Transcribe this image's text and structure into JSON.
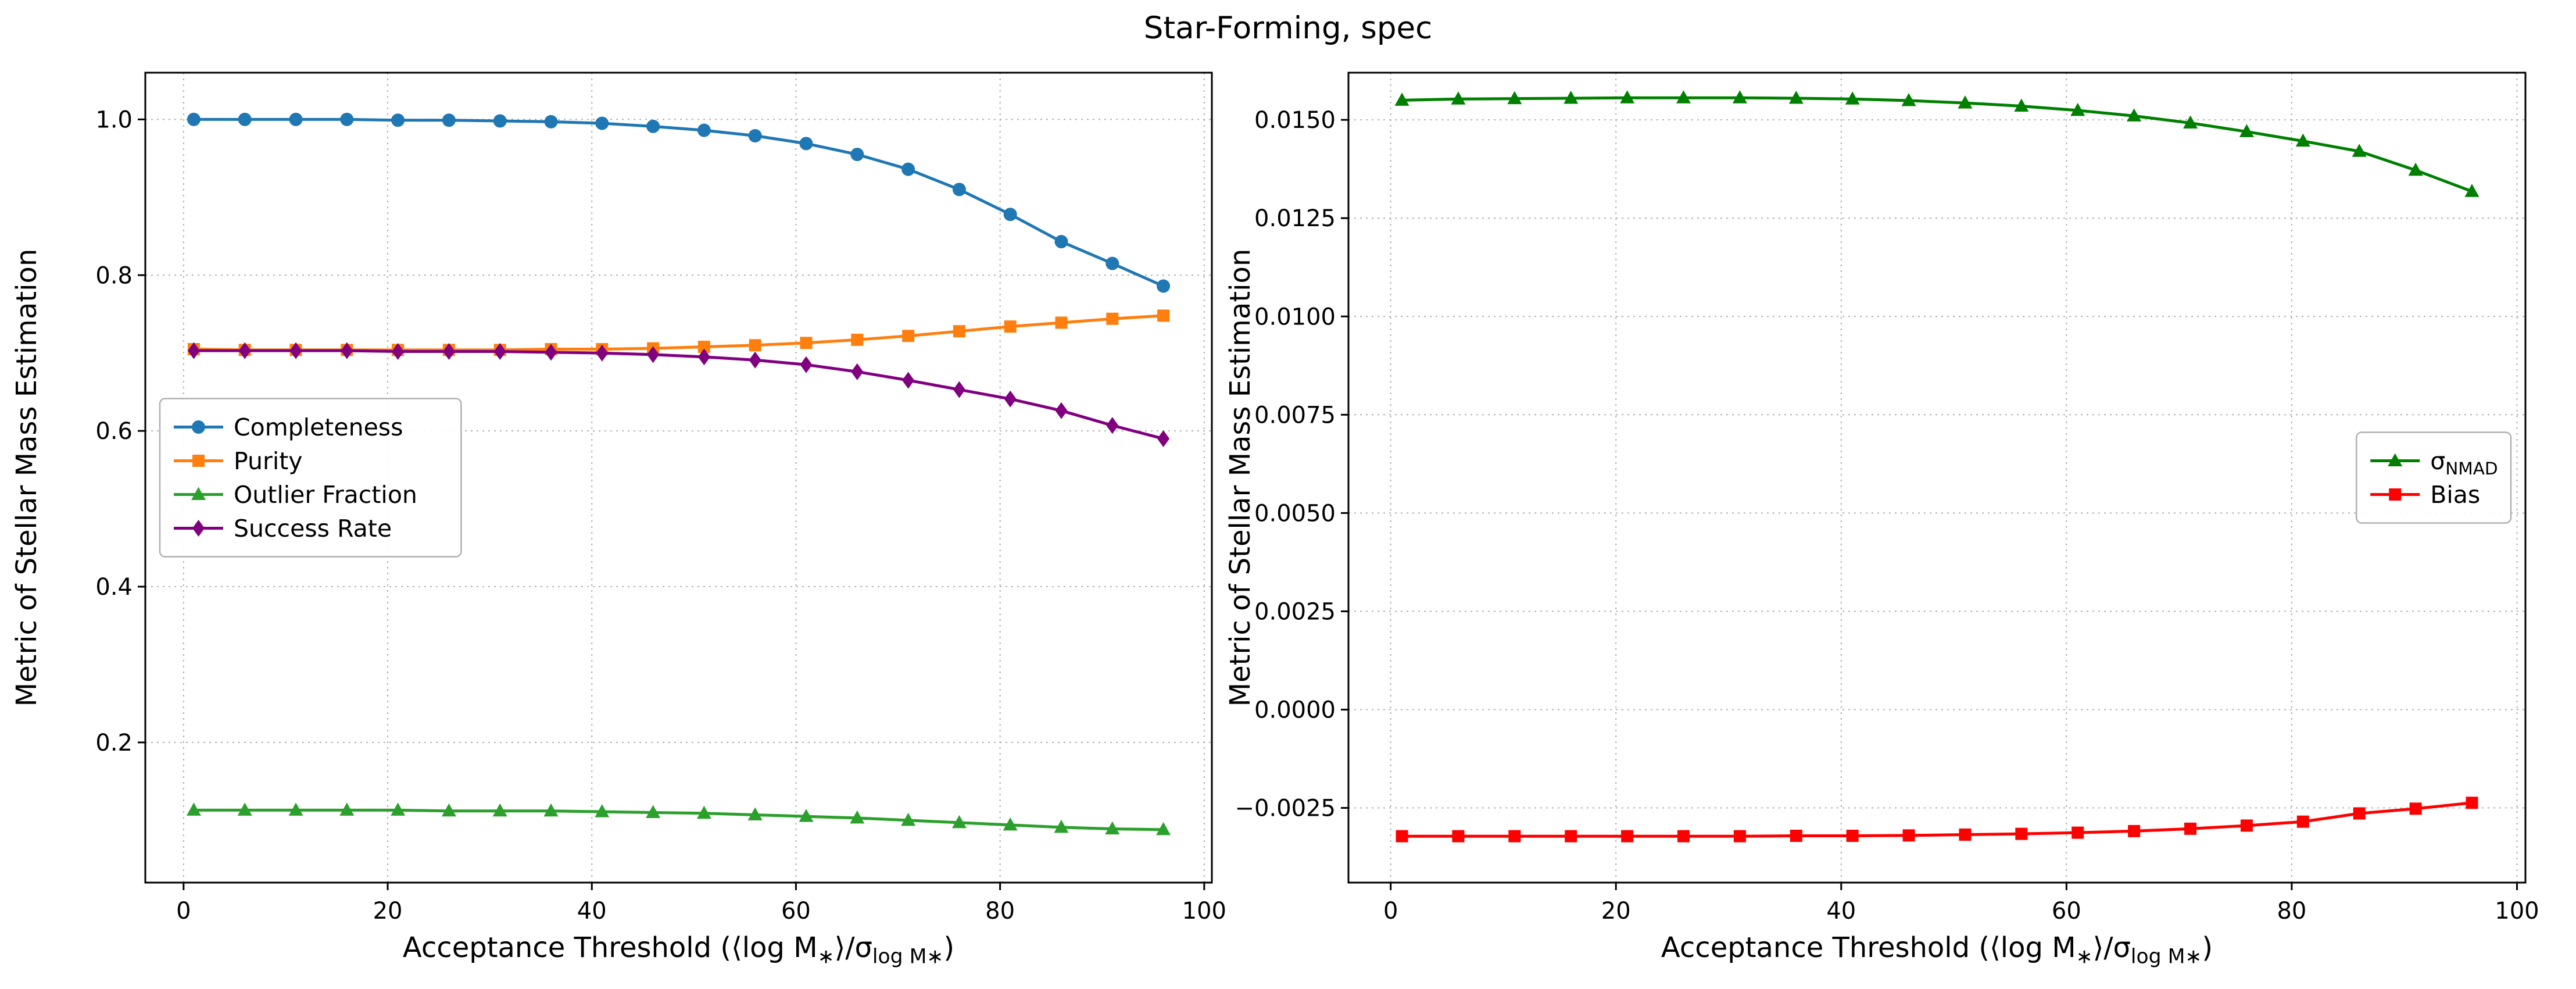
{
  "figure": {
    "title": "Star-Forming, spec"
  },
  "chart_data": [
    {
      "type": "line",
      "title": "",
      "xlabel": "Acceptance Threshold (⟨log M_{∗}⟩/σ_{log M∗})",
      "ylabel": "Metric of Stellar Mass Estimation",
      "xlim": [
        -3.75,
        100.75
      ],
      "ylim": [
        0.02,
        1.06
      ],
      "xticks": [
        0,
        20,
        40,
        60,
        80,
        100
      ],
      "xtick_labels": [
        "0",
        "20",
        "40",
        "60",
        "80",
        "100"
      ],
      "yticks": [
        0.2,
        0.4,
        0.6,
        0.8,
        1.0
      ],
      "ytick_labels": [
        "0.2",
        "0.4",
        "0.6",
        "0.8",
        "1.0"
      ],
      "grid": true,
      "legend_position": "center-left",
      "x": [
        1,
        6,
        11,
        16,
        21,
        26,
        31,
        36,
        41,
        46,
        51,
        56,
        61,
        66,
        71,
        76,
        81,
        86,
        91,
        96
      ],
      "series": [
        {
          "name": "Completeness",
          "color": "#1f77b4",
          "marker": "circle",
          "values": [
            1.0,
            1.0,
            1.0,
            1.0,
            0.999,
            0.999,
            0.998,
            0.997,
            0.995,
            0.991,
            0.986,
            0.979,
            0.969,
            0.955,
            0.936,
            0.91,
            0.878,
            0.843,
            0.815,
            0.786
          ]
        },
        {
          "name": "Purity",
          "color": "#ff7f0e",
          "marker": "square",
          "values": [
            0.705,
            0.704,
            0.704,
            0.704,
            0.704,
            0.704,
            0.704,
            0.705,
            0.705,
            0.706,
            0.708,
            0.71,
            0.713,
            0.717,
            0.722,
            0.728,
            0.734,
            0.739,
            0.744,
            0.748
          ]
        },
        {
          "name": "Outlier Fraction",
          "color": "#2ca02c",
          "marker": "triangle",
          "values": [
            0.113,
            0.113,
            0.113,
            0.113,
            0.113,
            0.112,
            0.112,
            0.112,
            0.111,
            0.11,
            0.109,
            0.107,
            0.105,
            0.103,
            0.1,
            0.097,
            0.094,
            0.091,
            0.089,
            0.088
          ]
        },
        {
          "name": "Success Rate",
          "color": "#800080",
          "marker": "diamond",
          "values": [
            0.703,
            0.703,
            0.703,
            0.703,
            0.702,
            0.702,
            0.702,
            0.701,
            0.7,
            0.698,
            0.695,
            0.691,
            0.685,
            0.676,
            0.665,
            0.653,
            0.641,
            0.626,
            0.607,
            0.59
          ]
        }
      ]
    },
    {
      "type": "line",
      "title": "",
      "xlabel": "Acceptance Threshold (⟨log M_{∗}⟩/σ_{log M∗})",
      "ylabel": "Metric of Stellar Mass Estimation",
      "xlim": [
        -3.75,
        100.75
      ],
      "ylim": [
        -0.0044,
        0.0162
      ],
      "xticks": [
        0,
        20,
        40,
        60,
        80,
        100
      ],
      "xtick_labels": [
        "0",
        "20",
        "40",
        "60",
        "80",
        "100"
      ],
      "yticks": [
        -0.0025,
        0.0,
        0.0025,
        0.005,
        0.0075,
        0.01,
        0.0125,
        0.015
      ],
      "ytick_labels": [
        "−0.0025",
        "0.0000",
        "0.0025",
        "0.0050",
        "0.0075",
        "0.0100",
        "0.0125",
        "0.0150"
      ],
      "grid": true,
      "legend_position": "center-right",
      "x": [
        1,
        6,
        11,
        16,
        21,
        26,
        31,
        36,
        41,
        46,
        51,
        56,
        61,
        66,
        71,
        76,
        81,
        86,
        91,
        96
      ],
      "series": [
        {
          "name": "σ_{NMAD}",
          "color": "#008000",
          "marker": "triangle",
          "values": [
            0.0155,
            0.01553,
            0.01554,
            0.01555,
            0.01556,
            0.01556,
            0.01556,
            0.01555,
            0.01553,
            0.01549,
            0.01543,
            0.01535,
            0.01524,
            0.0151,
            0.01492,
            0.0147,
            0.01446,
            0.0142,
            0.01372,
            0.01318
          ]
        },
        {
          "name": "Bias",
          "color": "#ff0000",
          "marker": "square",
          "values": [
            -0.00322,
            -0.00322,
            -0.00322,
            -0.00322,
            -0.00322,
            -0.00322,
            -0.00322,
            -0.00321,
            -0.00321,
            -0.0032,
            -0.00318,
            -0.00316,
            -0.00313,
            -0.00309,
            -0.00303,
            -0.00295,
            -0.00285,
            -0.00264,
            -0.00252,
            -0.00237
          ]
        }
      ]
    }
  ]
}
